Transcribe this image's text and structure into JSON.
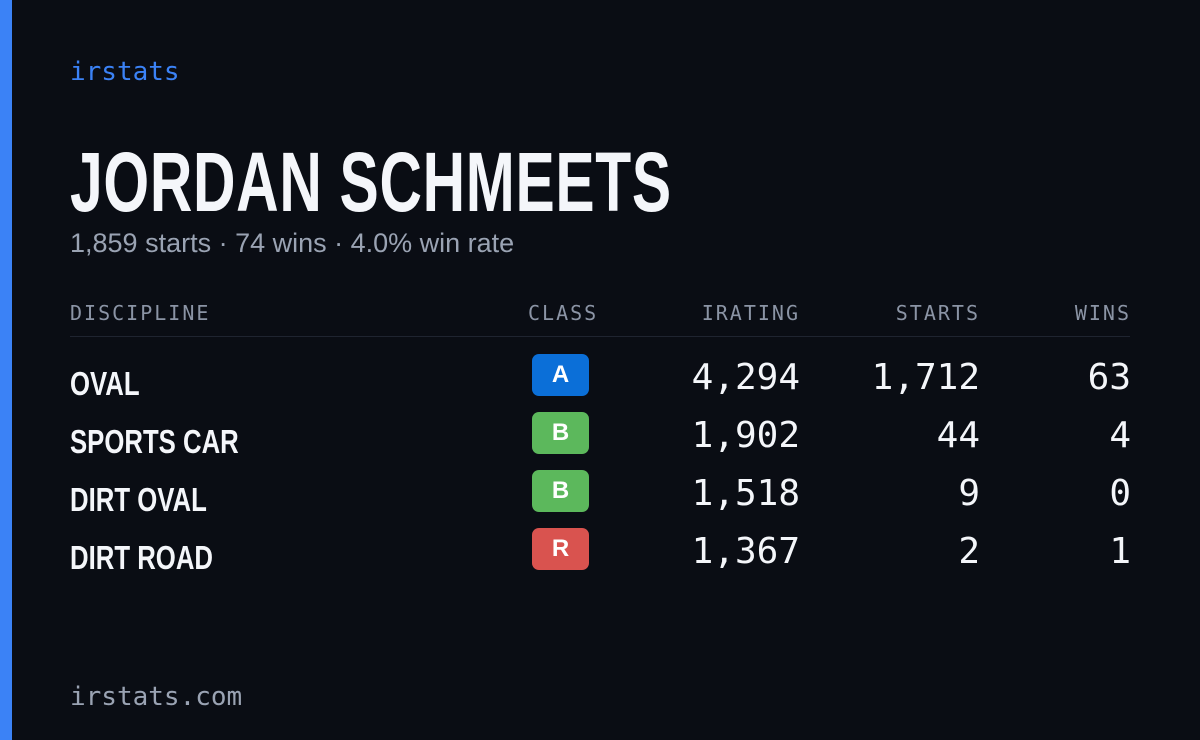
{
  "brand": "irstats",
  "driver": {
    "name": "JORDAN SCHMEETS",
    "summary": "1,859 starts · 74 wins · 4.0% win rate"
  },
  "table": {
    "headers": [
      "DISCIPLINE",
      "CLASS",
      "IRATING",
      "STARTS",
      "WINS"
    ],
    "rows": [
      {
        "discipline": "OVAL",
        "class": "A",
        "class_color": "#0b6fd8",
        "irating": "4,294",
        "starts": "1,712",
        "wins": "63"
      },
      {
        "discipline": "SPORTS CAR",
        "class": "B",
        "class_color": "#5cb85c",
        "irating": "1,902",
        "starts": "44",
        "wins": "4"
      },
      {
        "discipline": "DIRT OVAL",
        "class": "B",
        "class_color": "#5cb85c",
        "irating": "1,518",
        "starts": "9",
        "wins": "0"
      },
      {
        "discipline": "DIRT ROAD",
        "class": "R",
        "class_color": "#d9534f",
        "irating": "1,367",
        "starts": "2",
        "wins": "1"
      }
    ]
  },
  "footer": "irstats.com"
}
